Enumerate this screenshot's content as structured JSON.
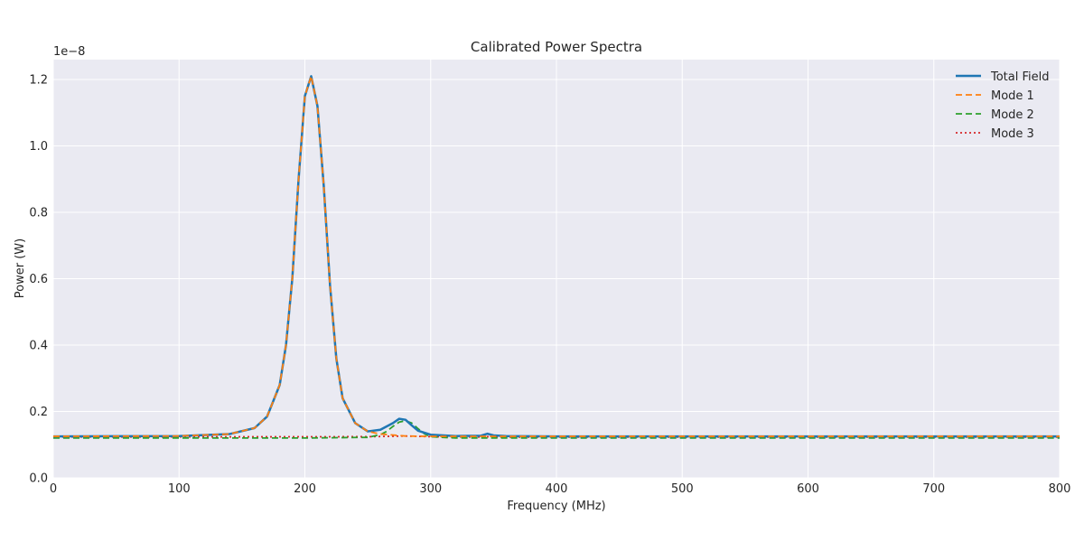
{
  "chart_data": {
    "type": "line",
    "title": "Calibrated Power Spectra",
    "xlabel": "Frequency (MHz)",
    "ylabel": "Power (W)",
    "y_offset_label": "1e−8",
    "xlim": [
      0,
      800
    ],
    "ylim": [
      0,
      1.26
    ],
    "x_ticks": [
      0,
      100,
      200,
      300,
      400,
      500,
      600,
      700,
      800
    ],
    "x_tick_labels": [
      "0",
      "100",
      "200",
      "300",
      "400",
      "500",
      "600",
      "700",
      "800"
    ],
    "y_ticks": [
      0,
      0.2,
      0.4,
      0.6,
      0.8,
      1.0,
      1.2
    ],
    "y_tick_labels": [
      "0.0",
      "0.2",
      "0.4",
      "0.6",
      "0.8",
      "1.0",
      "1.2"
    ],
    "grid": true,
    "legend_position": "top-right",
    "series": [
      {
        "name": "Total Field",
        "color": "#1f77b4",
        "style": "solid",
        "x": [
          0,
          100,
          140,
          160,
          170,
          180,
          185,
          190,
          195,
          200,
          205,
          210,
          215,
          220,
          225,
          230,
          240,
          250,
          260,
          270,
          275,
          280,
          285,
          290,
          300,
          320,
          340,
          345,
          350,
          360,
          400,
          500,
          600,
          700,
          800
        ],
        "y": [
          0.125,
          0.126,
          0.132,
          0.15,
          0.185,
          0.28,
          0.4,
          0.6,
          0.9,
          1.15,
          1.21,
          1.12,
          0.88,
          0.58,
          0.36,
          0.24,
          0.165,
          0.14,
          0.145,
          0.165,
          0.178,
          0.175,
          0.158,
          0.142,
          0.13,
          0.126,
          0.127,
          0.133,
          0.128,
          0.126,
          0.125,
          0.125,
          0.125,
          0.125,
          0.125
        ]
      },
      {
        "name": "Mode 1",
        "color": "#ff7f0e",
        "style": "dashed",
        "x": [
          0,
          100,
          140,
          160,
          170,
          180,
          185,
          190,
          195,
          200,
          205,
          210,
          215,
          220,
          225,
          230,
          240,
          250,
          260,
          280,
          300,
          400,
          500,
          600,
          700,
          800
        ],
        "y": [
          0.125,
          0.126,
          0.132,
          0.15,
          0.185,
          0.28,
          0.4,
          0.6,
          0.9,
          1.15,
          1.21,
          1.12,
          0.88,
          0.58,
          0.36,
          0.24,
          0.165,
          0.14,
          0.132,
          0.126,
          0.125,
          0.125,
          0.125,
          0.125,
          0.125,
          0.125
        ]
      },
      {
        "name": "Mode 2",
        "color": "#2ca02c",
        "style": "dashed",
        "x": [
          0,
          200,
          250,
          260,
          265,
          270,
          275,
          280,
          285,
          290,
          295,
          300,
          320,
          400,
          500,
          600,
          700,
          800
        ],
        "y": [
          0.12,
          0.12,
          0.122,
          0.13,
          0.14,
          0.155,
          0.168,
          0.172,
          0.165,
          0.148,
          0.133,
          0.124,
          0.12,
          0.12,
          0.12,
          0.12,
          0.12,
          0.12
        ]
      },
      {
        "name": "Mode 3",
        "color": "#d62728",
        "style": "dotted",
        "x": [
          0,
          250,
          280,
          300,
          340,
          345,
          350,
          400,
          500,
          600,
          700,
          800
        ],
        "y": [
          0.123,
          0.124,
          0.126,
          0.124,
          0.123,
          0.124,
          0.123,
          0.123,
          0.123,
          0.123,
          0.123,
          0.123
        ]
      }
    ]
  }
}
